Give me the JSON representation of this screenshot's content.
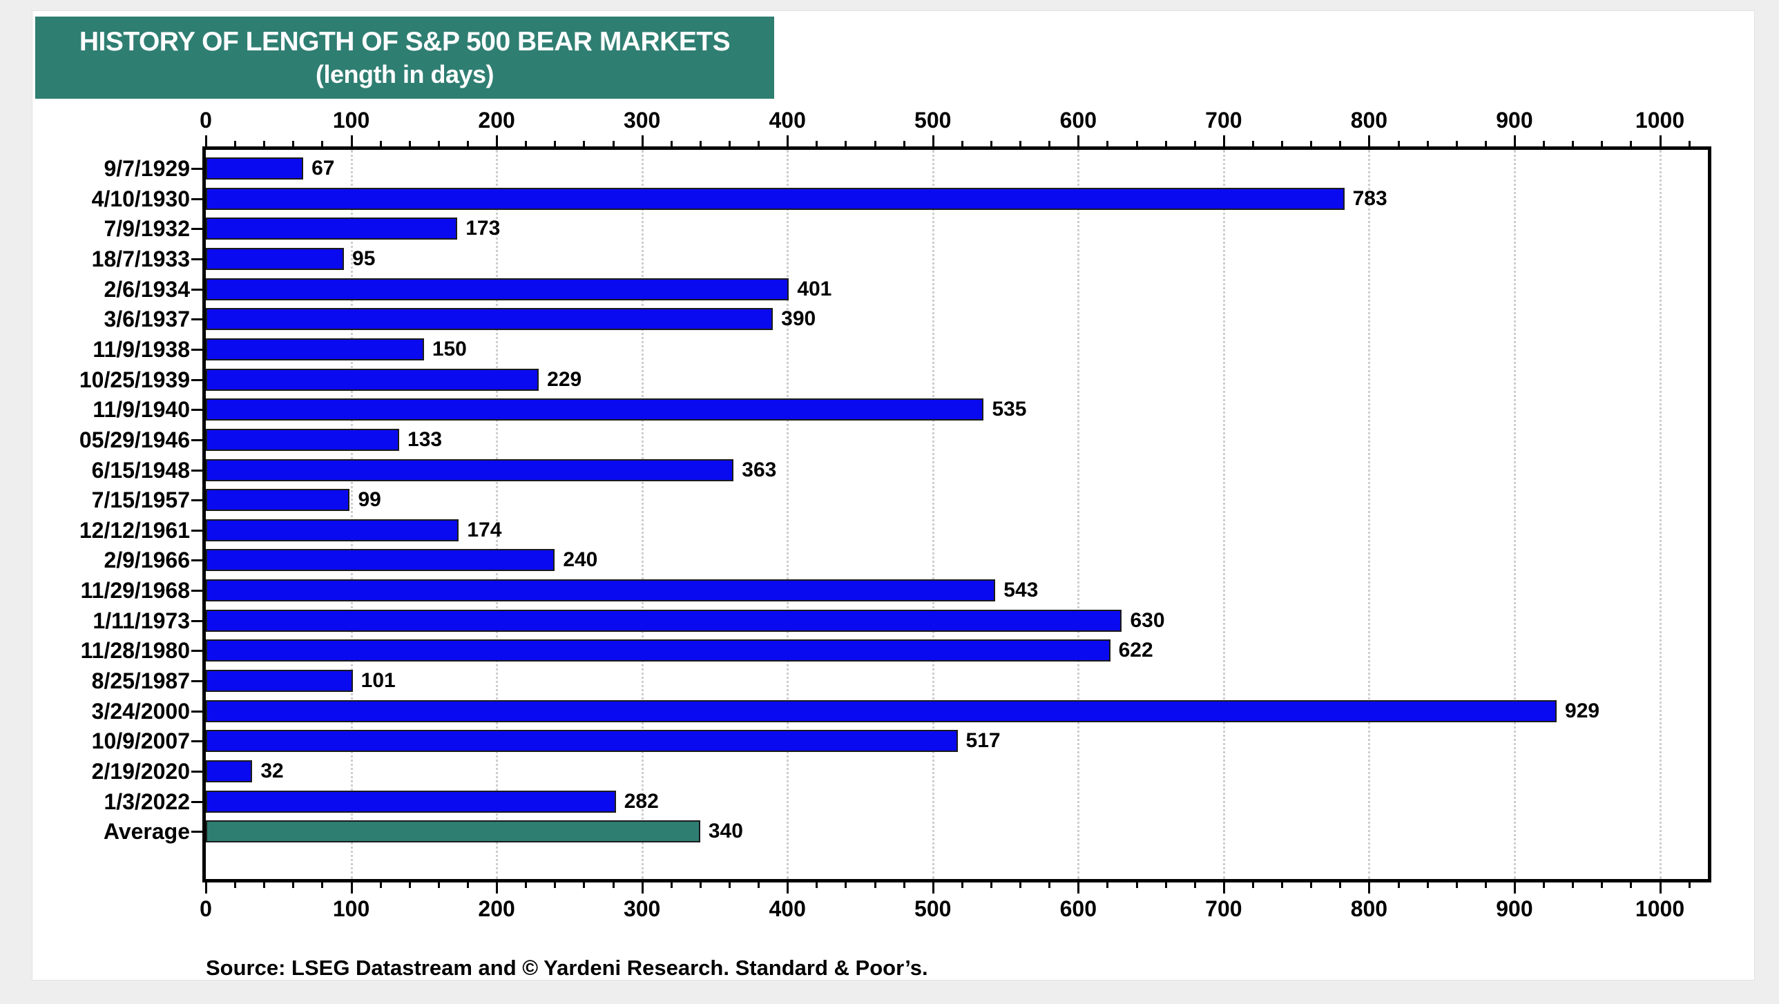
{
  "header": {
    "bg": "#2f7e72",
    "text_color": "#ffffff"
  },
  "chart_data": {
    "type": "bar",
    "orientation": "horizontal",
    "title": "HISTORY OF LENGTH OF S&P 500 BEAR MARKETS",
    "subtitle": "(length in days)",
    "categories": [
      "9/7/1929",
      "4/10/1930",
      "7/9/1932",
      "18/7/1933",
      "2/6/1934",
      "3/6/1937",
      "11/9/1938",
      "10/25/1939",
      "11/9/1940",
      "05/29/1946",
      "6/15/1948",
      "7/15/1957",
      "12/12/1961",
      "2/9/1966",
      "11/29/1968",
      "1/11/1973",
      "11/28/1980",
      "8/25/1987",
      "3/24/2000",
      "10/9/2007",
      "2/19/2020",
      "1/3/2022",
      "Average"
    ],
    "values": [
      67,
      783,
      173,
      95,
      401,
      390,
      150,
      229,
      535,
      133,
      363,
      99,
      174,
      240,
      543,
      630,
      622,
      101,
      929,
      517,
      32,
      282,
      340
    ],
    "value_labels_shown": true,
    "x_major_ticks": [
      0,
      100,
      200,
      300,
      400,
      500,
      600,
      700,
      800,
      900,
      1000
    ],
    "x_minor_tick_step": 20,
    "xlim": [
      0,
      1033
    ],
    "grid": "vertical dotted lines at each major tick",
    "legend": "none",
    "colors": {
      "bar": "#0a0af0",
      "average_bar": "#2f7e72",
      "bar_border": "#1b1b1b",
      "grid": "#cdcdcd",
      "axis": "#000000",
      "text": "#000000"
    }
  },
  "footer": {
    "source": "Source: LSEG Datastream and © Yardeni Research. Standard & Poor’s."
  }
}
